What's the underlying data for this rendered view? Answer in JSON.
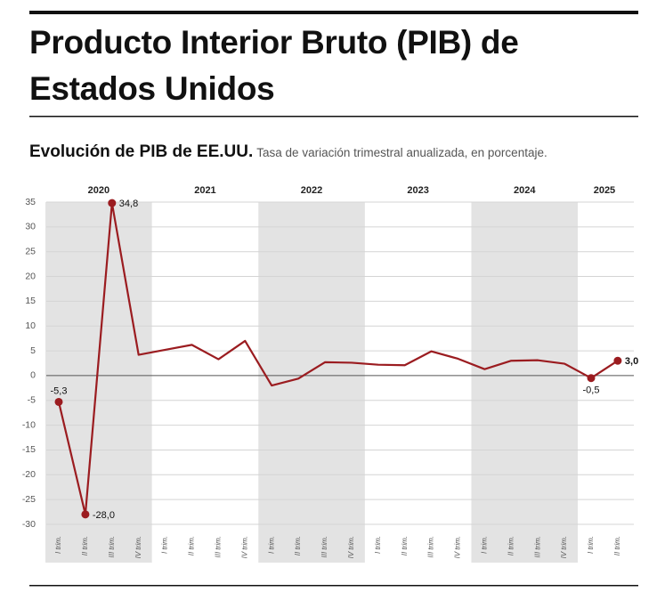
{
  "chart_data": {
    "type": "line",
    "title": "Producto Interior Bruto (PIB) de Estados Unidos",
    "subtitle": "Evolución de PIB de EE.UU.",
    "description": "Tasa de variación trimestral anualizada, en porcentaje.",
    "years": [
      "2020",
      "2021",
      "2022",
      "2023",
      "2024",
      "2025"
    ],
    "categories": [
      "I trim.",
      "II trim.",
      "III trim.",
      "IV trim.",
      "I trim.",
      "II trim.",
      "III trim.",
      "IV trim.",
      "I trim.",
      "II trim.",
      "III trim.",
      "IV trim.",
      "I trim.",
      "II trim.",
      "III trim.",
      "IV trim.",
      "I trim.",
      "II trim.",
      "III trim.",
      "IV trim.",
      "I trim.",
      "II trim."
    ],
    "series": [
      {
        "name": "PIB",
        "color": "#9b1c20",
        "values": [
          -5.3,
          -28.0,
          34.8,
          4.2,
          5.2,
          6.2,
          3.3,
          7.0,
          -2.0,
          -0.6,
          2.7,
          2.6,
          2.2,
          2.1,
          4.9,
          3.4,
          1.3,
          3.0,
          3.1,
          2.4,
          -0.5,
          3.0
        ],
        "value_labels": [
          "-5,3",
          "-28,0",
          "34,8",
          null,
          null,
          null,
          null,
          null,
          null,
          null,
          null,
          null,
          null,
          null,
          null,
          null,
          null,
          null,
          null,
          null,
          "-0,5",
          "3,0"
        ]
      }
    ],
    "ylim": [
      -30,
      35
    ],
    "yticks": [
      -30,
      -25,
      -20,
      -15,
      -10,
      -5,
      0,
      5,
      10,
      15,
      20,
      25,
      30,
      35
    ],
    "grid": true,
    "band_color": "#e3e3e3"
  }
}
